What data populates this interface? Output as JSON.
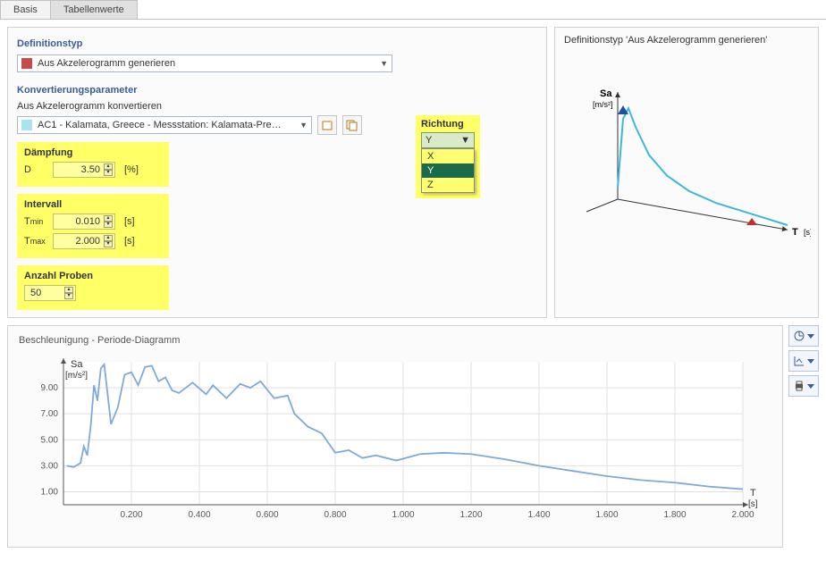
{
  "tabs": {
    "basis": "Basis",
    "tabellenwerte": "Tabellenwerte",
    "active": "tabellenwerte"
  },
  "left": {
    "def_title": "Definitionstyp",
    "def_combo": "Aus Akzelerogramm generieren",
    "conv_title": "Konvertierungsparameter",
    "conv_label": "Aus Akzelerogramm konvertieren",
    "conv_combo": "AC1 - Kalamata, Greece - Messstation: Kalamata-Pre…",
    "direction": {
      "label": "Richtung",
      "selected": "Y",
      "options": [
        "X",
        "Y",
        "Z"
      ]
    },
    "damping": {
      "title": "Dämpfung",
      "symbol": "D",
      "value": "3.50",
      "unit": "[%]"
    },
    "interval": {
      "title": "Intervall",
      "tmin_label": "Tmin",
      "tmin": "0.010",
      "tmax_label": "Tmax",
      "tmax": "2.000",
      "unit": "[s]"
    },
    "samples": {
      "title": "Anzahl Proben",
      "value": "50"
    }
  },
  "right_preview": {
    "title": "Definitionstyp 'Aus Akzelerogramm generieren'",
    "y_label": "Sa",
    "y_unit": "[m/s²]",
    "x_label": "T",
    "x_unit": "[s]",
    "curve_color": "#3fb8d8",
    "curve": [
      [
        0,
        10
      ],
      [
        6,
        70
      ],
      [
        12,
        80
      ],
      [
        20,
        65
      ],
      [
        35,
        43
      ],
      [
        55,
        28
      ],
      [
        80,
        18
      ],
      [
        110,
        12
      ],
      [
        150,
        8
      ],
      [
        190,
        4
      ]
    ]
  },
  "bottom_chart": {
    "title": "Beschleunigung - Periode-Diagramm",
    "y_label": "Sa",
    "y_unit": "[m/s²]",
    "x_label": "T",
    "x_unit": "[s]",
    "line_color": "#7fa9d8",
    "grid_color": "#e0e0e0",
    "background": "#ffffff",
    "xticks": [
      "0.200",
      "0.400",
      "0.600",
      "0.800",
      "1.000",
      "1.200",
      "1.400",
      "1.600",
      "1.800",
      "2.000"
    ],
    "yticks": [
      "1.00",
      "3.00",
      "5.00",
      "7.00",
      "9.00"
    ],
    "xlim": [
      0,
      2.0
    ],
    "ylim": [
      0,
      11
    ],
    "points": [
      [
        0.01,
        3.0
      ],
      [
        0.03,
        2.9
      ],
      [
        0.05,
        3.2
      ],
      [
        0.06,
        4.5
      ],
      [
        0.07,
        3.8
      ],
      [
        0.08,
        6.0
      ],
      [
        0.09,
        9.2
      ],
      [
        0.1,
        8.0
      ],
      [
        0.11,
        10.5
      ],
      [
        0.12,
        10.8
      ],
      [
        0.14,
        6.2
      ],
      [
        0.16,
        7.5
      ],
      [
        0.18,
        10.0
      ],
      [
        0.2,
        10.2
      ],
      [
        0.22,
        9.2
      ],
      [
        0.24,
        10.6
      ],
      [
        0.26,
        10.7
      ],
      [
        0.28,
        9.5
      ],
      [
        0.3,
        9.8
      ],
      [
        0.32,
        8.8
      ],
      [
        0.34,
        8.6
      ],
      [
        0.38,
        9.4
      ],
      [
        0.42,
        8.5
      ],
      [
        0.44,
        9.2
      ],
      [
        0.48,
        8.2
      ],
      [
        0.52,
        9.3
      ],
      [
        0.55,
        9.0
      ],
      [
        0.58,
        9.5
      ],
      [
        0.62,
        8.2
      ],
      [
        0.66,
        8.4
      ],
      [
        0.68,
        7.0
      ],
      [
        0.72,
        6.0
      ],
      [
        0.76,
        5.5
      ],
      [
        0.8,
        4.0
      ],
      [
        0.84,
        4.2
      ],
      [
        0.88,
        3.6
      ],
      [
        0.92,
        3.8
      ],
      [
        0.98,
        3.4
      ],
      [
        1.05,
        3.9
      ],
      [
        1.12,
        4.0
      ],
      [
        1.2,
        3.9
      ],
      [
        1.3,
        3.5
      ],
      [
        1.4,
        3.0
      ],
      [
        1.5,
        2.6
      ],
      [
        1.6,
        2.2
      ],
      [
        1.7,
        1.9
      ],
      [
        1.8,
        1.7
      ],
      [
        1.9,
        1.4
      ],
      [
        2.0,
        1.2
      ]
    ]
  }
}
